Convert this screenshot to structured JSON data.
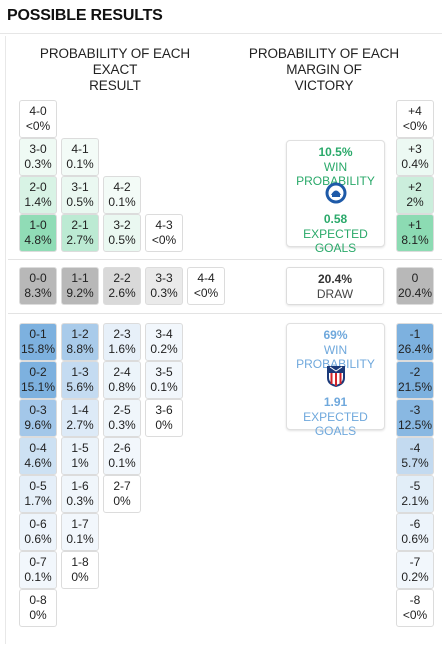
{
  "header": {
    "title": "POSSIBLE RESULTS"
  },
  "columns": {
    "exact": [
      "PROBABILITY OF EACH EXACT",
      "RESULT"
    ],
    "margin": [
      "PROBABILITY OF EACH MARGIN OF",
      "VICTORY"
    ]
  },
  "colors": {
    "home_accent": "#2ebd75",
    "away_accent": "#6fa8dc",
    "home_text": "#2aa96a",
    "away_text": "#5c9bd1"
  },
  "home_card": {
    "win_prob": "10.5%",
    "win_label": "WIN PROBABILITY",
    "xg": "0.58",
    "xg_label": "EXPECTED GOALS",
    "logo_icon": "alaves-crest-icon"
  },
  "draw_card": {
    "prob": "20.4%",
    "label": "DRAW"
  },
  "away_card": {
    "win_prob": "69%",
    "win_label": "WIN PROBABILITY",
    "xg": "1.91",
    "xg_label": "EXPECTED GOALS",
    "logo_icon": "atletico-crest-icon"
  },
  "home_scores": [
    [
      "4-0",
      "<0%"
    ],
    [
      "3-0",
      "0.3%"
    ],
    [
      "4-1",
      "0.1%"
    ],
    [
      "2-0",
      "1.4%"
    ],
    [
      "3-1",
      "0.5%"
    ],
    [
      "4-2",
      "0.1%"
    ],
    [
      "1-0",
      "4.8%"
    ],
    [
      "2-1",
      "2.7%"
    ],
    [
      "3-2",
      "0.5%"
    ],
    [
      "4-3",
      "<0%"
    ]
  ],
  "draw_scores": [
    [
      "0-0",
      "8.3%"
    ],
    [
      "1-1",
      "9.2%"
    ],
    [
      "2-2",
      "2.6%"
    ],
    [
      "3-3",
      "0.3%"
    ],
    [
      "4-4",
      "<0%"
    ]
  ],
  "away_scores": [
    [
      "0-1",
      "15.8%"
    ],
    [
      "1-2",
      "8.8%"
    ],
    [
      "2-3",
      "1.6%"
    ],
    [
      "3-4",
      "0.2%"
    ],
    [
      "0-2",
      "15.1%"
    ],
    [
      "1-3",
      "5.6%"
    ],
    [
      "2-4",
      "0.8%"
    ],
    [
      "3-5",
      "0.1%"
    ],
    [
      "0-3",
      "9.6%"
    ],
    [
      "1-4",
      "2.7%"
    ],
    [
      "2-5",
      "0.3%"
    ],
    [
      "3-6",
      "0%"
    ],
    [
      "0-4",
      "4.6%"
    ],
    [
      "1-5",
      "1%"
    ],
    [
      "2-6",
      "0.1%"
    ],
    [
      "0-5",
      "1.7%"
    ],
    [
      "1-6",
      "0.3%"
    ],
    [
      "2-7",
      "0%"
    ],
    [
      "0-6",
      "0.6%"
    ],
    [
      "1-7",
      "0.1%"
    ],
    [
      "0-7",
      "0.1%"
    ],
    [
      "1-8",
      "0%"
    ],
    [
      "0-8",
      "0%"
    ]
  ],
  "margins": [
    [
      "+4",
      "<0%"
    ],
    [
      "+3",
      "0.4%"
    ],
    [
      "+2",
      "2%"
    ],
    [
      "+1",
      "8.1%"
    ],
    [
      "0",
      "20.4%"
    ],
    [
      "-1",
      "26.4%"
    ],
    [
      "-2",
      "21.5%"
    ],
    [
      "-3",
      "12.5%"
    ],
    [
      "-4",
      "5.7%"
    ],
    [
      "-5",
      "2.1%"
    ],
    [
      "-6",
      "0.6%"
    ],
    [
      "-7",
      "0.2%"
    ],
    [
      "-8",
      "<0%"
    ]
  ]
}
